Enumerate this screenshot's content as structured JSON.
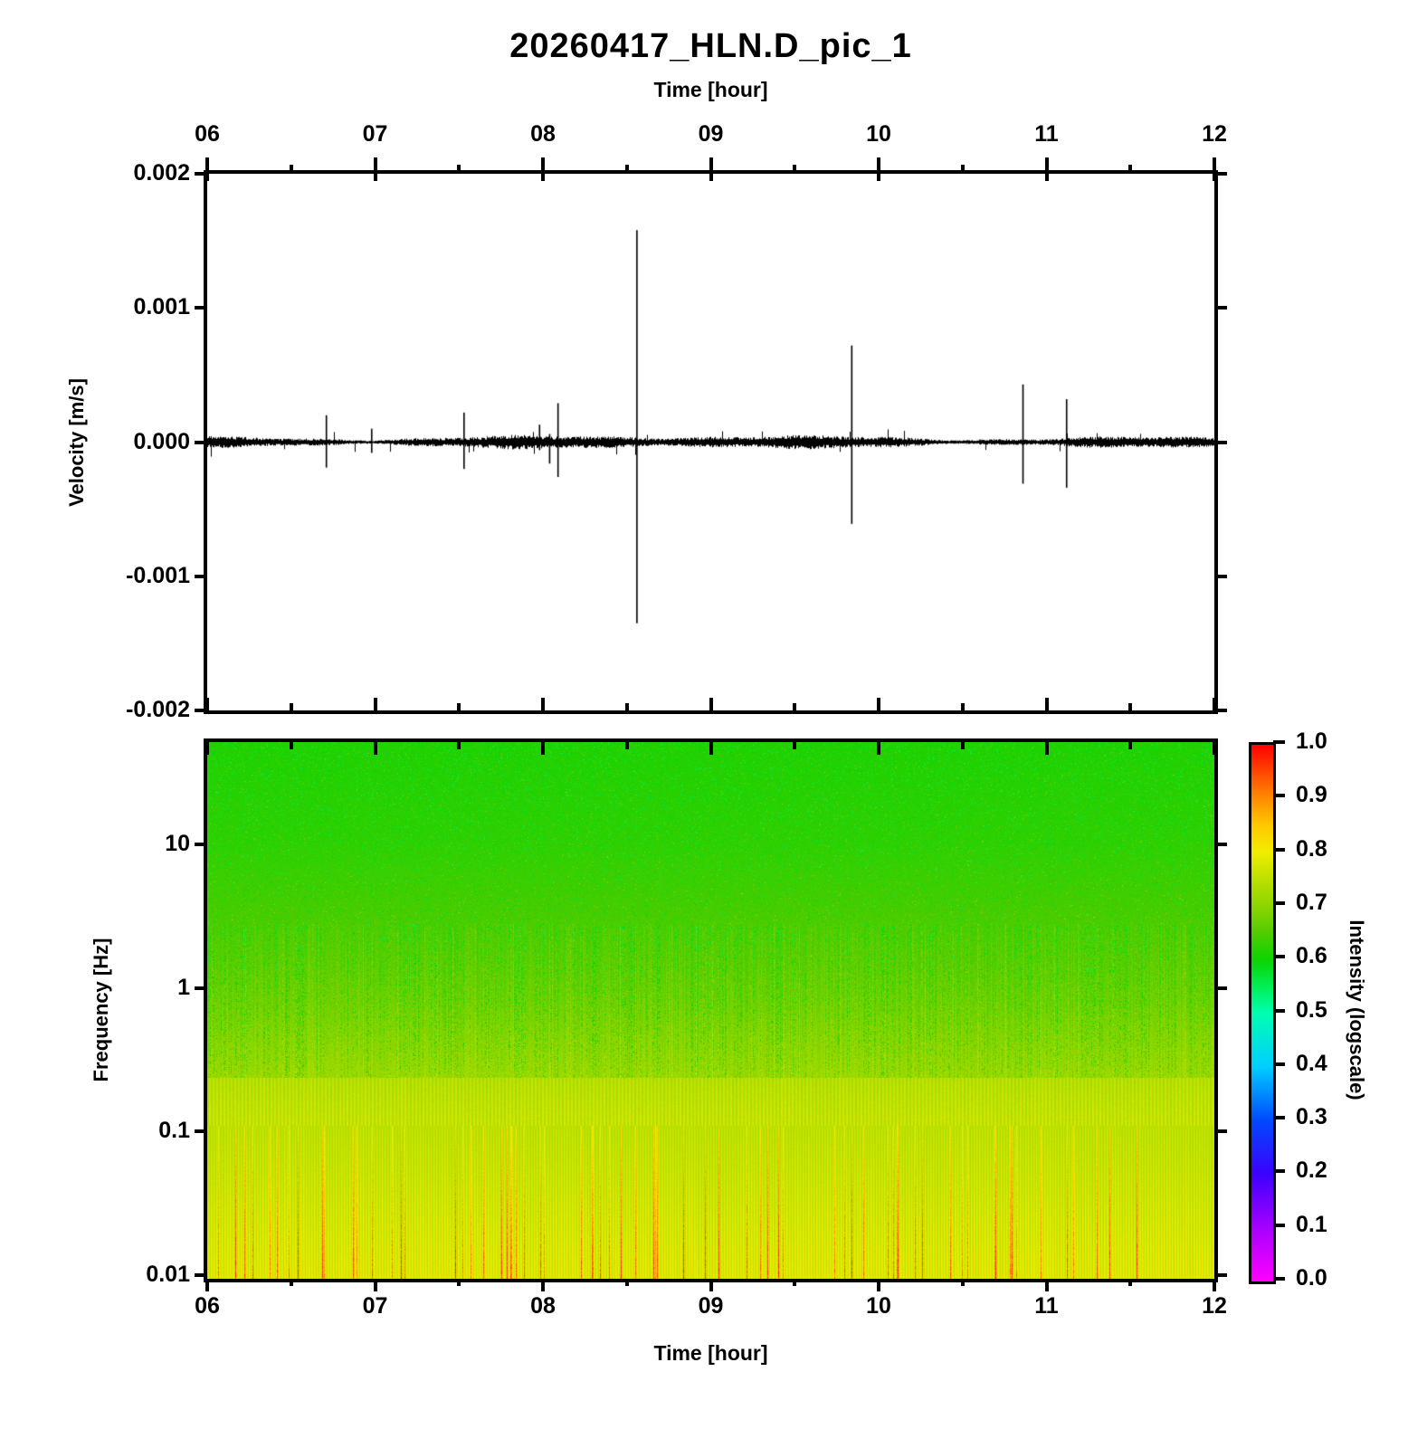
{
  "title": "20260417_HLN.D_pic_1",
  "axes": {
    "time_top_label": "Time [hour]",
    "time_bottom_label": "Time [hour]",
    "velocity_label": "Velocity [m/s]",
    "frequency_label": "Frequency [Hz]",
    "intensity_label": "Intensity (logscale)"
  },
  "colors": {
    "background": "#ffffff",
    "axis": "#000000",
    "trace": "#000000"
  },
  "chart_data": [
    {
      "type": "line",
      "name": "seismic-waveform",
      "xlabel": "Time [hour]",
      "ylabel": "Velocity [m/s]",
      "x_range": [
        6,
        12
      ],
      "x_tick_labels": [
        "06",
        "07",
        "08",
        "09",
        "10",
        "11",
        "12"
      ],
      "x_minor_tick_step_hours": 0.5,
      "ylim": [
        -0.002,
        0.002
      ],
      "y_tick_values": [
        0.002,
        0.001,
        0,
        -0.001,
        -0.002
      ],
      "y_tick_labels": [
        "0.002",
        "0.001",
        "0.000",
        "-0.001",
        "-0.002"
      ],
      "noise_band_amplitude_ms": 4e-05,
      "spikes": [
        {
          "t": 6.71,
          "up": 0.0002,
          "down": -0.00019
        },
        {
          "t": 6.98,
          "up": 0.0001,
          "down": -8e-05
        },
        {
          "t": 7.53,
          "up": 0.00022,
          "down": -0.0002
        },
        {
          "t": 7.98,
          "up": 0.00013,
          "down": -6e-05
        },
        {
          "t": 8.04,
          "up": 6e-05,
          "down": -0.00016
        },
        {
          "t": 8.09,
          "up": 0.00029,
          "down": -0.00026
        },
        {
          "t": 8.56,
          "up": 0.00158,
          "down": -0.00135
        },
        {
          "t": 9.84,
          "up": 0.00072,
          "down": -0.00061
        },
        {
          "t": 10.86,
          "up": 0.00043,
          "down": -0.00031
        },
        {
          "t": 11.12,
          "up": 0.00032,
          "down": -0.00034
        }
      ]
    },
    {
      "type": "heatmap",
      "name": "spectrogram",
      "xlabel": "Time [hour]",
      "ylabel": "Frequency [Hz]",
      "x_range": [
        6,
        12
      ],
      "x_tick_labels": [
        "06",
        "07",
        "08",
        "09",
        "10",
        "11",
        "12"
      ],
      "x_minor_tick_step_hours": 0.5,
      "y_scale": "log",
      "y_range_hz": [
        0.009,
        51.5
      ],
      "y_tick_values": [
        10,
        1,
        0.1,
        0.01
      ],
      "y_tick_labels": [
        "10",
        "1",
        "0.1",
        "0.01"
      ],
      "intensity_profile": [
        {
          "f": 51,
          "i": 0.615
        },
        {
          "f": 10,
          "i": 0.625
        },
        {
          "f": 3,
          "i": 0.645
        },
        {
          "f": 1.5,
          "i": 0.66
        },
        {
          "f": 0.8,
          "i": 0.675
        },
        {
          "f": 0.45,
          "i": 0.695
        },
        {
          "f": 0.25,
          "i": 0.715
        },
        {
          "f": 0.12,
          "i": 0.73
        },
        {
          "f": 0.03,
          "i": 0.74
        },
        {
          "f": 0.009,
          "i": 0.75
        }
      ],
      "texture_bands": [
        {
          "f_above": 2.8,
          "texture": "random-green-speckle"
        },
        {
          "f_above": 0.24,
          "texture": "green-vertical-dashes"
        },
        {
          "f_above": 0.11,
          "texture": "fine-yellow-stripes"
        },
        {
          "f_above": 0.009,
          "texture": "yellow-stripes-orange-accents"
        }
      ],
      "colorbar": {
        "label": "Intensity (logscale)",
        "range": [
          0.0,
          1.0
        ],
        "tick_labels": [
          "1.0",
          "0.9",
          "0.8",
          "0.7",
          "0.6",
          "0.5",
          "0.4",
          "0.3",
          "0.2",
          "0.1",
          "0.0"
        ],
        "stops": [
          {
            "v": 0.0,
            "color": "#ff00ff"
          },
          {
            "v": 0.1,
            "color": "#a600ff"
          },
          {
            "v": 0.2,
            "color": "#3c00ff"
          },
          {
            "v": 0.3,
            "color": "#0049ff"
          },
          {
            "v": 0.4,
            "color": "#00ceff"
          },
          {
            "v": 0.5,
            "color": "#00ffb0"
          },
          {
            "v": 0.55,
            "color": "#00ee55"
          },
          {
            "v": 0.6,
            "color": "#0cd400"
          },
          {
            "v": 0.65,
            "color": "#52cc00"
          },
          {
            "v": 0.7,
            "color": "#8cd600"
          },
          {
            "v": 0.75,
            "color": "#bce000"
          },
          {
            "v": 0.8,
            "color": "#f0ee00"
          },
          {
            "v": 0.85,
            "color": "#ffc800"
          },
          {
            "v": 0.9,
            "color": "#ff8c00"
          },
          {
            "v": 0.95,
            "color": "#ff4600"
          },
          {
            "v": 1.0,
            "color": "#ff0000"
          }
        ]
      }
    }
  ]
}
